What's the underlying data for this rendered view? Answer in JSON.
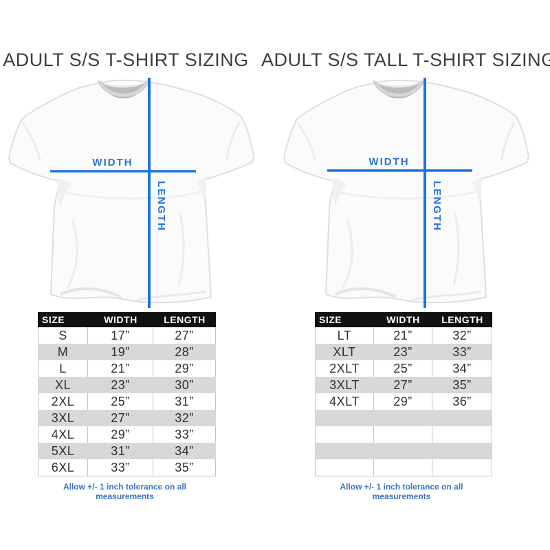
{
  "colors": {
    "measure_line_blue": "#1b74e0",
    "measure_label_blue": "#2a71d8",
    "note_blue": "#3575c5",
    "table_header_bg": "#111111",
    "alt_row_gray": "#d8d8d8"
  },
  "panels": [
    {
      "title": "ADULT S/S T-SHIRT SIZING",
      "diagram": {
        "width_label": "WIDTH",
        "length_label": "LENGTH"
      },
      "table": {
        "headers": [
          "SIZE",
          "WIDTH",
          "LENGTH"
        ],
        "rows": [
          [
            "S",
            "17”",
            "27”"
          ],
          [
            "M",
            "19”",
            "28”"
          ],
          [
            "L",
            "21”",
            "29”"
          ],
          [
            "XL",
            "23”",
            "30”"
          ],
          [
            "2XL",
            "25”",
            "31”"
          ],
          [
            "3XL",
            "27”",
            "32”"
          ],
          [
            "4XL",
            "29”",
            "33”"
          ],
          [
            "5XL",
            "31”",
            "34”"
          ],
          [
            "6XL",
            "33”",
            "35”"
          ]
        ]
      },
      "note": "Allow +/- 1 inch tolerance on all measurements"
    },
    {
      "title": "ADULT S/S TALL T-SHIRT SIZING",
      "diagram": {
        "width_label": "WIDTH",
        "length_label": "LENGTH"
      },
      "table": {
        "headers": [
          "SIZE",
          "WIDTH",
          "LENGTH"
        ],
        "rows": [
          [
            "LT",
            "21”",
            "32”"
          ],
          [
            "XLT",
            "23”",
            "33”"
          ],
          [
            "2XLT",
            "25”",
            "34”"
          ],
          [
            "3XLT",
            "27”",
            "35”"
          ],
          [
            "4XLT",
            "29”",
            "36”"
          ],
          [
            "",
            "",
            ""
          ],
          [
            "",
            "",
            ""
          ],
          [
            "",
            "",
            ""
          ],
          [
            "",
            "",
            ""
          ]
        ]
      },
      "note": "Allow +/- 1 inch tolerance on all measurements"
    }
  ]
}
